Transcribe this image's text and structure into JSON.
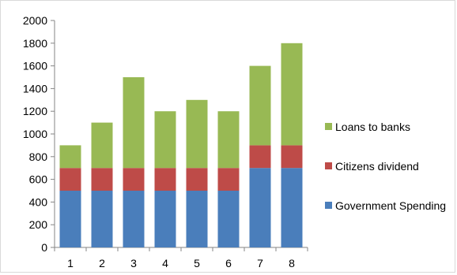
{
  "chart_data": {
    "type": "bar",
    "stacked": true,
    "categories": [
      "1",
      "2",
      "3",
      "4",
      "5",
      "6",
      "7",
      "8"
    ],
    "series": [
      {
        "name": "Government Spending",
        "color": "#4a7ebb",
        "values": [
          500,
          500,
          500,
          500,
          500,
          500,
          700,
          700
        ]
      },
      {
        "name": "Citizens dividend",
        "color": "#be4b48",
        "values": [
          200,
          200,
          200,
          200,
          200,
          200,
          200,
          200
        ]
      },
      {
        "name": "Loans to banks",
        "color": "#98b954",
        "values": [
          200,
          400,
          800,
          500,
          600,
          500,
          700,
          900
        ]
      }
    ],
    "ylim": [
      0,
      2000
    ],
    "yticks": [
      0,
      200,
      400,
      600,
      800,
      1000,
      1200,
      1400,
      1600,
      1800,
      2000
    ],
    "grid": false,
    "legend": "right"
  }
}
